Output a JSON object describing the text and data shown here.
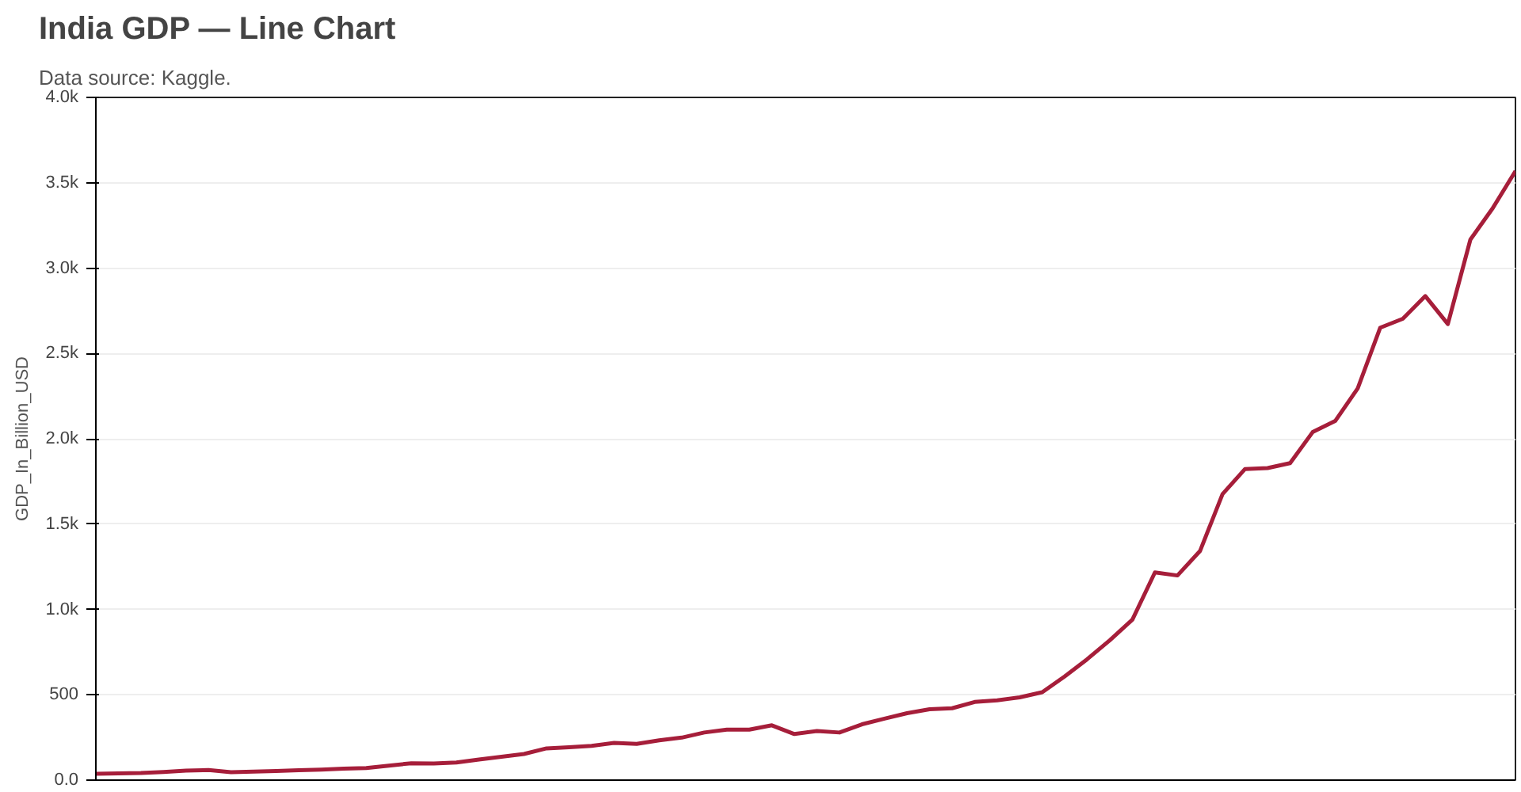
{
  "chart_data": {
    "type": "line",
    "title": "India GDP — Line Chart",
    "subtitle": "Data source: Kaggle.",
    "ylabel": "GDP_In_Billion_USD",
    "categories": [
      null,
      null,
      null,
      null,
      null,
      null,
      null,
      null,
      null,
      null,
      null,
      null,
      null,
      null,
      null,
      null,
      null,
      null,
      null,
      null,
      null,
      null,
      null,
      null,
      null,
      null,
      null,
      null,
      null,
      null,
      null,
      null,
      null,
      null,
      null,
      null,
      null,
      null,
      null,
      null,
      null,
      null,
      null,
      null,
      null,
      null,
      null,
      null,
      null,
      null,
      null,
      null,
      null,
      null,
      null,
      null,
      null,
      null,
      null,
      null,
      null,
      null,
      null,
      null
    ],
    "series": [
      {
        "color": "#a61e3a",
        "values": [
          37,
          39,
          42,
          48,
          56,
          59,
          46,
          50,
          53,
          58,
          62,
          67,
          71,
          85,
          99,
          98,
          103,
          121,
          137,
          153,
          186,
          193,
          201,
          218,
          212,
          233,
          249,
          279,
          296,
          296,
          321,
          270,
          288,
          279,
          327,
          360,
          392,
          415,
          421,
          458,
          468,
          485,
          515,
          608,
          709,
          820,
          940,
          1217,
          1199,
          1342,
          1676,
          1823,
          1828,
          1857,
          2039,
          2104,
          2295,
          2651,
          2703,
          2836,
          2672,
          3167,
          3353,
          3568
        ]
      }
    ],
    "ylim": [
      0,
      4000
    ],
    "yticks": [
      {
        "value": 0,
        "label": "0.0"
      },
      500,
      {
        "value": 1000,
        "label": "1.0k"
      },
      {
        "value": 1500,
        "label": "1.5k"
      },
      {
        "value": 2000,
        "label": "2.0k"
      },
      {
        "value": 2500,
        "label": "2.5k"
      },
      {
        "value": 3000,
        "label": "3.0k"
      },
      {
        "value": 3500,
        "label": "3.5k"
      },
      {
        "value": 4000,
        "label": "4.0k"
      }
    ],
    "grid": "y",
    "marker": "none",
    "line_style": "solid"
  }
}
